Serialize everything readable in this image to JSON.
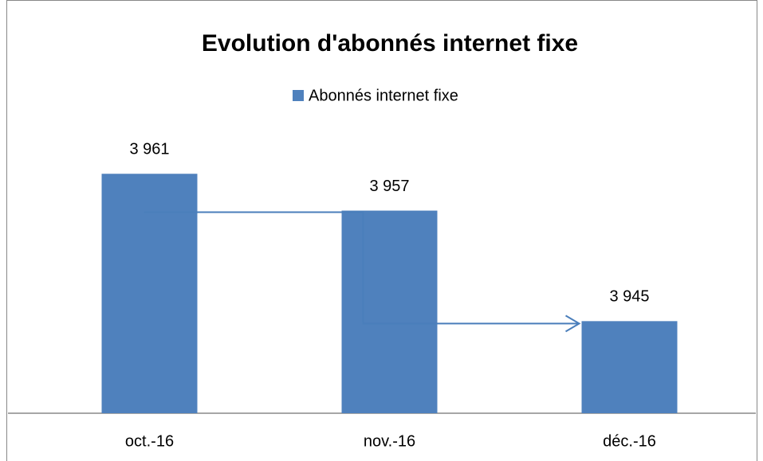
{
  "chart_data": {
    "type": "bar",
    "title": "Evolution d'abonnés internet fixe",
    "categories": [
      "oct.-16",
      "nov.-16",
      "déc.-16"
    ],
    "series": [
      {
        "name": "Abonnés internet fixe",
        "color": "#4f81bd",
        "values": [
          3961,
          3957,
          3945
        ],
        "value_labels": [
          "3 961",
          "3 957",
          "3 945"
        ]
      }
    ],
    "ylim": [
      3935,
      3965
    ]
  }
}
